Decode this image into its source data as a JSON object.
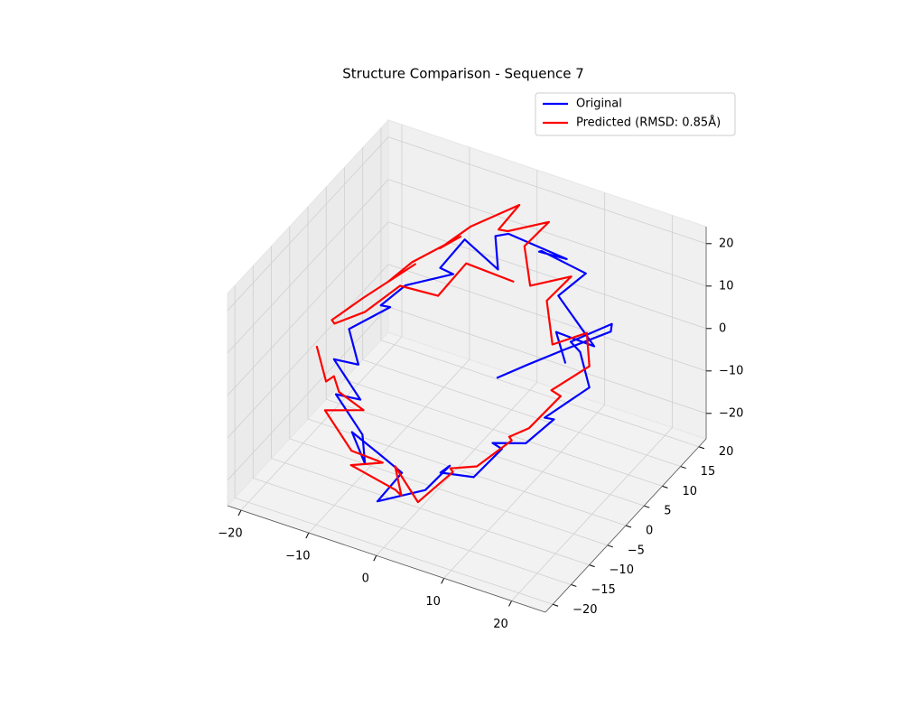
{
  "chart_data": {
    "type": "line3d",
    "title": "Structure Comparison - Sequence 7",
    "xlim": [
      -22,
      25
    ],
    "ylim": [
      -22,
      22
    ],
    "zlim": [
      -26,
      24
    ],
    "xticks": [
      {
        "value": -20,
        "label": "−20"
      },
      {
        "value": -10,
        "label": "−10"
      },
      0,
      10,
      20
    ],
    "yticks": [
      {
        "value": -20,
        "label": "−20"
      },
      {
        "value": -15,
        "label": "−15"
      },
      {
        "value": -10,
        "label": "−10"
      },
      {
        "value": -5,
        "label": "−5"
      },
      0,
      5,
      10,
      15,
      20
    ],
    "zticks": [
      {
        "value": -20,
        "label": "−20"
      },
      {
        "value": -10,
        "label": "−10"
      },
      0,
      10,
      20
    ],
    "grid": true,
    "legend": "upper right",
    "series": [
      {
        "name": "Original",
        "color": "#0000ff",
        "x": [
          15,
          12,
          16,
          10,
          8,
          11,
          5,
          3,
          6,
          -1,
          -4,
          -2,
          -8,
          -10,
          -7,
          -13,
          -15,
          -12,
          -17,
          -14,
          -16,
          -11,
          -13,
          -8,
          -6,
          -9,
          -3,
          0,
          -2,
          4,
          6,
          3,
          9,
          11,
          8,
          14,
          16,
          13,
          18,
          15,
          12,
          17,
          19,
          14,
          10,
          7
        ],
        "y": [
          2,
          5,
          8,
          10,
          13,
          15,
          14,
          17,
          19,
          16,
          18,
          15,
          17,
          14,
          12,
          10,
          7,
          4,
          2,
          -1,
          -4,
          -6,
          -9,
          -11,
          -14,
          -12,
          -16,
          -15,
          -18,
          -16,
          -13,
          -10,
          -12,
          -8,
          -5,
          -7,
          -3,
          0,
          3,
          6,
          9,
          11,
          7,
          4,
          1,
          -2
        ],
        "z": [
          5,
          8,
          4,
          10,
          7,
          12,
          15,
          11,
          9,
          14,
          10,
          6,
          8,
          3,
          5,
          1,
          -2,
          2,
          -4,
          -8,
          -5,
          -10,
          -7,
          -12,
          -15,
          -11,
          -9,
          -13,
          -18,
          -14,
          -10,
          -16,
          -12,
          -8,
          -11,
          -6,
          -3,
          -7,
          0,
          4,
          2,
          7,
          10,
          6,
          3,
          1
        ]
      },
      {
        "name": "Predicted (RMSD: 0.85Å)",
        "color": "#ff0000",
        "x": [
          -18,
          -15,
          -16,
          -12,
          -10,
          -13,
          -8,
          -5,
          -7,
          -2,
          1,
          -1,
          4,
          7,
          5,
          10,
          13,
          11,
          15,
          17,
          14,
          18,
          16,
          12,
          9,
          11,
          6,
          3,
          5,
          0,
          -3,
          -1,
          -6,
          -9,
          -7,
          -12,
          -14,
          -11,
          -16,
          -19,
          -17,
          -13,
          -10,
          -6,
          -4,
          2
        ],
        "y": [
          -5,
          -8,
          -4,
          -10,
          -7,
          -12,
          -14,
          -11,
          -16,
          -13,
          -17,
          -15,
          -18,
          -14,
          -11,
          -13,
          -9,
          -6,
          -8,
          -3,
          0,
          3,
          6,
          4,
          8,
          11,
          9,
          13,
          16,
          14,
          17,
          19,
          15,
          12,
          14,
          10,
          7,
          9,
          4,
          1,
          -2,
          -1,
          3,
          6,
          10,
          12
        ],
        "z": [
          -2,
          -6,
          -9,
          -5,
          -11,
          -8,
          -13,
          -17,
          -14,
          -20,
          -16,
          -12,
          -15,
          -10,
          -13,
          -8,
          -4,
          -7,
          -1,
          3,
          0,
          5,
          9,
          6,
          11,
          15,
          12,
          16,
          20,
          17,
          13,
          18,
          14,
          10,
          12,
          7,
          4,
          8,
          2,
          -2,
          1,
          5,
          9,
          6,
          11,
          8
        ]
      }
    ]
  }
}
